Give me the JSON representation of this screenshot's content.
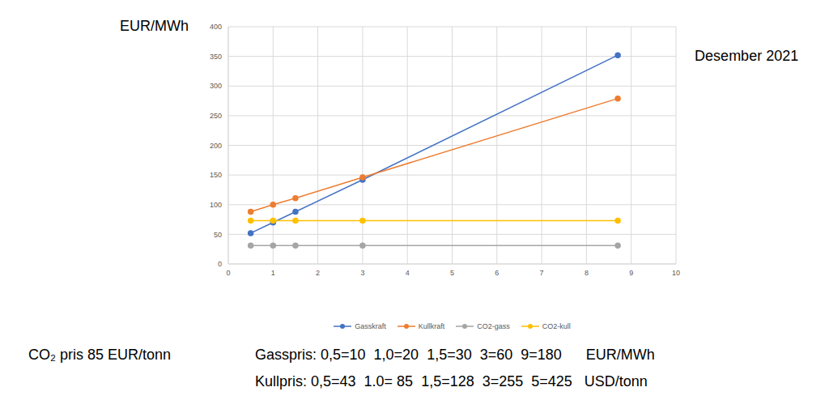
{
  "chart_data": {
    "type": "line",
    "y_label": "EUR/MWh",
    "x": [
      0.5,
      1,
      1.5,
      3,
      8.7
    ],
    "series": [
      {
        "name": "Gasskraft",
        "color": "#4472c4",
        "values": [
          52,
          70,
          88,
          142,
          352
        ]
      },
      {
        "name": "Kullkraft",
        "color": "#ed7d31",
        "values": [
          88,
          100,
          111,
          146,
          279
        ]
      },
      {
        "name": "CO2-gass",
        "color": "#a5a5a5",
        "values": [
          31,
          31,
          31,
          31,
          31
        ]
      },
      {
        "name": "CO2-kull",
        "color": "#ffc000",
        "values": [
          73,
          73,
          73,
          73,
          73
        ]
      }
    ],
    "xlim": [
      0,
      10
    ],
    "xticks": [
      0,
      1,
      2,
      3,
      4,
      5,
      6,
      7,
      8,
      9,
      10
    ],
    "ylim": [
      0,
      400
    ],
    "yticks": [
      0,
      50,
      100,
      150,
      200,
      250,
      300,
      350,
      400
    ],
    "grid": true,
    "legend": "bottom",
    "marker": "circle",
    "annotations": [
      {
        "text": "Desember 2021",
        "x": 8.7,
        "y": 352
      }
    ],
    "footnotes": [
      "CO₂ pris 85 EUR/tonn",
      "Gasspris: 0,5=10  1,0=20  1,5=30  3=60  9=180      EUR/MWh",
      "Kullpris: 0,5=43  1.0= 85  1,5=128  3=255  5=425   USD/tonn"
    ]
  }
}
